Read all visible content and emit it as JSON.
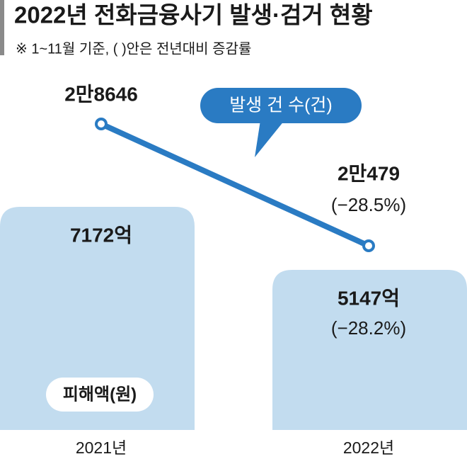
{
  "chart_data": {
    "type": "bar",
    "title": "2022년 전화금융사기 발생·검거 현황",
    "subtitle": "※ 1~11월 기준, (   )안은 전년대비 증감률",
    "categories": [
      "2021년",
      "2022년"
    ],
    "series": [
      {
        "name": "피해액(원)",
        "type": "bar",
        "color": "#c2dcef",
        "values": [
          7172,
          5147
        ],
        "value_labels": [
          "7172억",
          "5147억"
        ],
        "change_label": "(−28.2%)"
      },
      {
        "name": "발생 건 수(건)",
        "type": "line",
        "color": "#2a7bc3",
        "values": [
          28646,
          20479
        ],
        "value_labels": [
          "2만8646",
          "2만479"
        ],
        "change_label": "(−28.5%)"
      }
    ]
  }
}
